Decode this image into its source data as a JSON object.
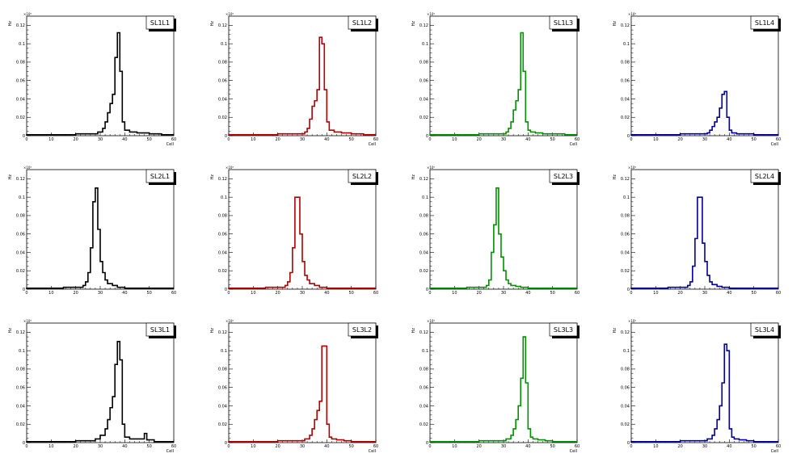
{
  "chart_data": [
    {
      "type": "line",
      "step": true,
      "title": "SL1L1",
      "xlabel": "Cell",
      "ylabel": "Hz",
      "yexp": "×10⁶",
      "xlim": [
        0,
        60
      ],
      "ylim": [
        0,
        0.13
      ],
      "xticks": [
        0,
        10,
        20,
        30,
        40,
        50,
        60
      ],
      "yticks": [
        0,
        0.02,
        0.04,
        0.06,
        0.08,
        0.1,
        0.12
      ],
      "color": "#000000",
      "legend": "top-right",
      "x": [
        0,
        20,
        25,
        29,
        31,
        32,
        33,
        34,
        35,
        36,
        37,
        38,
        39,
        40,
        42,
        45,
        50,
        55,
        60
      ],
      "y": [
        0.001,
        0.002,
        0.002,
        0.004,
        0.008,
        0.015,
        0.025,
        0.035,
        0.045,
        0.085,
        0.112,
        0.07,
        0.015,
        0.006,
        0.004,
        0.003,
        0.002,
        0.001,
        0.001
      ]
    },
    {
      "type": "line",
      "step": true,
      "title": "SL1L2",
      "xlabel": "Cell",
      "ylabel": "Hz",
      "yexp": "×10⁶",
      "xlim": [
        0,
        60
      ],
      "ylim": [
        0,
        0.13
      ],
      "xticks": [
        0,
        10,
        20,
        30,
        40,
        50,
        60
      ],
      "yticks": [
        0,
        0.02,
        0.04,
        0.06,
        0.08,
        0.1,
        0.12
      ],
      "color": "#b00000",
      "legend": "top-right",
      "x": [
        0,
        20,
        28,
        31,
        32,
        33,
        34,
        35,
        36,
        37,
        38,
        39,
        40,
        41,
        43,
        46,
        50,
        55,
        60
      ],
      "y": [
        0.001,
        0.002,
        0.002,
        0.004,
        0.008,
        0.018,
        0.032,
        0.038,
        0.05,
        0.107,
        0.1,
        0.05,
        0.015,
        0.006,
        0.004,
        0.003,
        0.002,
        0.001,
        0.001
      ]
    },
    {
      "type": "line",
      "step": true,
      "title": "SL1L3",
      "xlabel": "Cell",
      "ylabel": "Hz",
      "yexp": "×10⁶",
      "xlim": [
        0,
        60
      ],
      "ylim": [
        0,
        0.13
      ],
      "xticks": [
        0,
        10,
        20,
        30,
        40,
        50,
        60
      ],
      "yticks": [
        0,
        0.02,
        0.04,
        0.06,
        0.08,
        0.1,
        0.12
      ],
      "color": "#009000",
      "legend": "top-right",
      "x": [
        0,
        20,
        28,
        31,
        32,
        33,
        34,
        35,
        36,
        37,
        38,
        39,
        40,
        41,
        43,
        46,
        50,
        55,
        60
      ],
      "y": [
        0.001,
        0.002,
        0.002,
        0.004,
        0.008,
        0.015,
        0.028,
        0.038,
        0.05,
        0.112,
        0.07,
        0.015,
        0.006,
        0.004,
        0.003,
        0.002,
        0.002,
        0.001,
        0.001
      ]
    },
    {
      "type": "line",
      "step": true,
      "title": "SL1L4",
      "xlabel": "Cell",
      "ylabel": "Hz",
      "yexp": "×10⁶",
      "xlim": [
        0,
        60
      ],
      "ylim": [
        0,
        0.13
      ],
      "xticks": [
        0,
        10,
        20,
        30,
        40,
        50,
        60
      ],
      "yticks": [
        0,
        0.02,
        0.04,
        0.06,
        0.08,
        0.1,
        0.12
      ],
      "color": "#000099",
      "legend": "top-right",
      "x": [
        0,
        20,
        28,
        31,
        32,
        33,
        34,
        35,
        36,
        37,
        38,
        39,
        40,
        41,
        43,
        46,
        50,
        55,
        60
      ],
      "y": [
        0.001,
        0.002,
        0.002,
        0.003,
        0.006,
        0.01,
        0.015,
        0.02,
        0.03,
        0.045,
        0.048,
        0.02,
        0.006,
        0.003,
        0.002,
        0.002,
        0.001,
        0.001,
        0.001
      ]
    },
    {
      "type": "line",
      "step": true,
      "title": "SL2L1",
      "xlabel": "",
      "ylabel": "Hz",
      "yexp": "×10⁶",
      "xlim": [
        0,
        60
      ],
      "ylim": [
        0,
        0.13
      ],
      "xticks": [
        0,
        10,
        20,
        30,
        40,
        50,
        60
      ],
      "yticks": [
        0,
        0.02,
        0.04,
        0.06,
        0.08,
        0.1,
        0.12
      ],
      "color": "#000000",
      "legend": "top-right",
      "x": [
        0,
        15,
        20,
        23,
        24,
        25,
        26,
        27,
        28,
        29,
        30,
        31,
        32,
        33,
        35,
        37,
        40,
        50,
        60
      ],
      "y": [
        0.001,
        0.002,
        0.002,
        0.004,
        0.008,
        0.018,
        0.045,
        0.095,
        0.11,
        0.065,
        0.03,
        0.018,
        0.01,
        0.006,
        0.004,
        0.002,
        0.001,
        0.001,
        0.001
      ]
    },
    {
      "type": "line",
      "step": true,
      "title": "SL2L2",
      "xlabel": "",
      "ylabel": "Hz",
      "yexp": "×10⁶",
      "xlim": [
        0,
        60
      ],
      "ylim": [
        0,
        0.13
      ],
      "xticks": [
        0,
        10,
        20,
        30,
        40,
        50,
        60
      ],
      "yticks": [
        0,
        0.02,
        0.04,
        0.06,
        0.08,
        0.1,
        0.12
      ],
      "color": "#b00000",
      "legend": "top-right",
      "x": [
        0,
        15,
        20,
        23,
        24,
        25,
        26,
        27,
        28,
        29,
        30,
        31,
        32,
        33,
        35,
        37,
        40,
        50,
        60
      ],
      "y": [
        0.001,
        0.002,
        0.002,
        0.004,
        0.008,
        0.018,
        0.045,
        0.1,
        0.1,
        0.06,
        0.03,
        0.015,
        0.01,
        0.006,
        0.004,
        0.002,
        0.001,
        0.001,
        0.001
      ]
    },
    {
      "type": "line",
      "step": true,
      "title": "SL2L3",
      "xlabel": "",
      "ylabel": "Hz",
      "yexp": "×10⁶",
      "xlim": [
        0,
        60
      ],
      "ylim": [
        0,
        0.13
      ],
      "xticks": [
        0,
        10,
        20,
        30,
        40,
        50,
        60
      ],
      "yticks": [
        0,
        0.02,
        0.04,
        0.06,
        0.08,
        0.1,
        0.12
      ],
      "color": "#009000",
      "legend": "top-right",
      "x": [
        0,
        15,
        20,
        23,
        24,
        25,
        26,
        27,
        28,
        29,
        30,
        31,
        32,
        33,
        35,
        37,
        40,
        50,
        60
      ],
      "y": [
        0.001,
        0.002,
        0.002,
        0.004,
        0.01,
        0.04,
        0.07,
        0.11,
        0.06,
        0.035,
        0.02,
        0.01,
        0.006,
        0.004,
        0.003,
        0.002,
        0.001,
        0.001,
        0.001
      ]
    },
    {
      "type": "line",
      "step": true,
      "title": "SL2L4",
      "xlabel": "",
      "ylabel": "Hz",
      "yexp": "×10⁶",
      "xlim": [
        0,
        60
      ],
      "ylim": [
        0,
        0.13
      ],
      "xticks": [
        0,
        10,
        20,
        30,
        40,
        50,
        60
      ],
      "yticks": [
        0,
        0.02,
        0.04,
        0.06,
        0.08,
        0.1,
        0.12
      ],
      "color": "#000099",
      "legend": "top-right",
      "x": [
        0,
        15,
        20,
        23,
        24,
        25,
        26,
        27,
        28,
        29,
        30,
        31,
        32,
        33,
        35,
        37,
        40,
        50,
        60
      ],
      "y": [
        0.001,
        0.002,
        0.002,
        0.004,
        0.008,
        0.025,
        0.055,
        0.1,
        0.1,
        0.05,
        0.03,
        0.015,
        0.008,
        0.005,
        0.003,
        0.002,
        0.001,
        0.001,
        0.001
      ]
    },
    {
      "type": "line",
      "step": true,
      "title": "SL3L1",
      "xlabel": "Cell",
      "ylabel": "Hz",
      "yexp": "×10⁶",
      "xlim": [
        0,
        60
      ],
      "ylim": [
        0,
        0.13
      ],
      "xticks": [
        0,
        10,
        20,
        30,
        40,
        50,
        60
      ],
      "yticks": [
        0,
        0.02,
        0.04,
        0.06,
        0.08,
        0.1,
        0.12
      ],
      "color": "#000000",
      "legend": "top-right",
      "x": [
        0,
        20,
        25,
        28,
        30,
        32,
        33,
        34,
        35,
        36,
        37,
        38,
        39,
        40,
        42,
        48,
        49,
        52,
        60
      ],
      "y": [
        0.001,
        0.002,
        0.002,
        0.004,
        0.008,
        0.015,
        0.025,
        0.038,
        0.05,
        0.085,
        0.11,
        0.09,
        0.02,
        0.006,
        0.004,
        0.01,
        0.003,
        0.001,
        0.001
      ]
    },
    {
      "type": "line",
      "step": true,
      "title": "SL3L2",
      "xlabel": "Cell",
      "ylabel": "Hz",
      "yexp": "×10⁶",
      "xlim": [
        0,
        60
      ],
      "ylim": [
        0,
        0.13
      ],
      "xticks": [
        0,
        10,
        20,
        30,
        40,
        50,
        60
      ],
      "yticks": [
        0,
        0.02,
        0.04,
        0.06,
        0.08,
        0.1,
        0.12
      ],
      "color": "#b00000",
      "legend": "top-right",
      "x": [
        0,
        20,
        28,
        31,
        33,
        34,
        35,
        36,
        37,
        38,
        39,
        40,
        41,
        42,
        44,
        47,
        50,
        55,
        60
      ],
      "y": [
        0.001,
        0.002,
        0.002,
        0.004,
        0.008,
        0.015,
        0.025,
        0.035,
        0.045,
        0.105,
        0.105,
        0.02,
        0.006,
        0.004,
        0.003,
        0.002,
        0.001,
        0.001,
        0.001
      ]
    },
    {
      "type": "line",
      "step": true,
      "title": "SL3L3",
      "xlabel": "Cell",
      "ylabel": "Hz",
      "yexp": "×10⁶",
      "xlim": [
        0,
        60
      ],
      "ylim": [
        0,
        0.13
      ],
      "xticks": [
        0,
        10,
        20,
        30,
        40,
        50,
        60
      ],
      "yticks": [
        0,
        0.02,
        0.04,
        0.06,
        0.08,
        0.1,
        0.12
      ],
      "color": "#009000",
      "legend": "top-right",
      "x": [
        0,
        20,
        28,
        31,
        33,
        34,
        35,
        36,
        37,
        38,
        39,
        40,
        41,
        42,
        44,
        47,
        50,
        55,
        60
      ],
      "y": [
        0.001,
        0.002,
        0.002,
        0.004,
        0.008,
        0.015,
        0.025,
        0.04,
        0.07,
        0.115,
        0.065,
        0.015,
        0.006,
        0.004,
        0.003,
        0.002,
        0.001,
        0.001,
        0.001
      ]
    },
    {
      "type": "line",
      "step": true,
      "title": "SL3L4",
      "xlabel": "Cell",
      "ylabel": "Hz",
      "yexp": "×10⁶",
      "xlim": [
        0,
        60
      ],
      "ylim": [
        0,
        0.13
      ],
      "xticks": [
        0,
        10,
        20,
        30,
        40,
        50,
        60
      ],
      "yticks": [
        0,
        0.02,
        0.04,
        0.06,
        0.08,
        0.1,
        0.12
      ],
      "color": "#000099",
      "legend": "top-right",
      "x": [
        0,
        20,
        28,
        31,
        33,
        34,
        35,
        36,
        37,
        38,
        39,
        40,
        41,
        42,
        44,
        47,
        50,
        55,
        60
      ],
      "y": [
        0.001,
        0.002,
        0.002,
        0.004,
        0.008,
        0.015,
        0.025,
        0.04,
        0.065,
        0.107,
        0.1,
        0.015,
        0.006,
        0.004,
        0.003,
        0.002,
        0.001,
        0.001,
        0.001
      ]
    }
  ]
}
